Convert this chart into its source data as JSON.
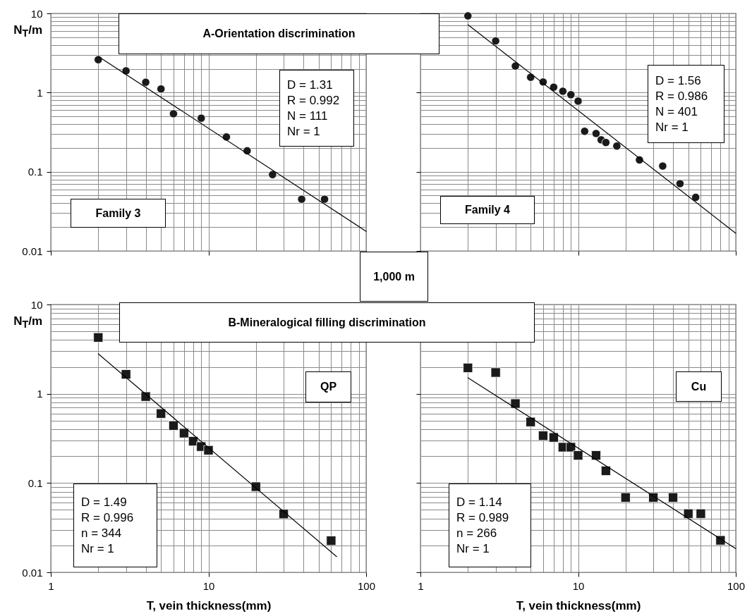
{
  "chart_data": [
    {
      "type": "scatter",
      "title": "A-Orientation discrimination",
      "ylabel": "N$_{T}$/m",
      "annotations": [
        "Family 3",
        "D = 1.31\nR = 0.992\nN = 111\nNr = 1",
        "1,000 m"
      ],
      "log": "xy",
      "grid": true,
      "tick_labels": "y",
      "xlim": [
        1,
        100
      ],
      "ylim": [
        0.01,
        10
      ],
      "xticks": [
        1,
        {
          "value": 2,
          "label": null
        },
        {
          "value": 3,
          "label": null
        },
        {
          "value": 4,
          "label": null
        },
        {
          "value": 5,
          "label": null
        },
        {
          "value": 6,
          "label": null
        },
        {
          "value": 7,
          "label": null
        },
        {
          "value": 8,
          "label": null
        },
        {
          "value": 9,
          "label": null
        },
        10,
        {
          "value": 20,
          "label": null
        },
        {
          "value": 30,
          "label": null
        },
        {
          "value": 40,
          "label": null
        },
        {
          "value": 50,
          "label": null
        },
        {
          "value": 60,
          "label": null
        },
        {
          "value": 70,
          "label": null
        },
        {
          "value": 80,
          "label": null
        },
        {
          "value": 90,
          "label": null
        },
        100
      ],
      "yticks": [
        0.01,
        {
          "value": 0.02,
          "label": null
        },
        {
          "value": 0.03,
          "label": null
        },
        {
          "value": 0.04,
          "label": null
        },
        {
          "value": 0.05,
          "label": null
        },
        {
          "value": 0.06,
          "label": null
        },
        {
          "value": 0.07,
          "label": null
        },
        {
          "value": 0.08,
          "label": null
        },
        {
          "value": 0.09,
          "label": null
        },
        0.1,
        {
          "value": 0.2,
          "label": null
        },
        {
          "value": 0.3,
          "label": null
        },
        {
          "value": 0.4,
          "label": null
        },
        {
          "value": 0.5,
          "label": null
        },
        {
          "value": 0.6,
          "label": null
        },
        {
          "value": 0.7,
          "label": null
        },
        {
          "value": 0.8,
          "label": null
        },
        {
          "value": 0.9,
          "label": null
        },
        1,
        {
          "value": 2,
          "label": null
        },
        {
          "value": 3,
          "label": null
        },
        {
          "value": 4,
          "label": null
        },
        {
          "value": 5,
          "label": null
        },
        {
          "value": 6,
          "label": null
        },
        {
          "value": 7,
          "label": null
        },
        {
          "value": 8,
          "label": null
        },
        {
          "value": 9,
          "label": null
        },
        10
      ],
      "series": [
        {
          "type": "scatter",
          "marker": "circle",
          "color": "#1a1a1a",
          "x": [
            2,
            3,
            4,
            5,
            6,
            9,
            13,
            17.6,
            25.5,
            39,
            54.5
          ],
          "values": [
            2.6,
            1.88,
            1.35,
            1.11,
            0.54,
            0.475,
            0.275,
            0.184,
            0.092,
            0.045,
            0.045
          ]
        },
        {
          "type": "line",
          "marker": "none",
          "color": "#000000",
          "x": [
            2,
            100
          ],
          "values": [
            2.87,
            0.0177
          ]
        }
      ]
    },
    {
      "type": "scatter",
      "annotations": [
        "Family 4",
        "D = 1.56\nR = 0.986\nN = 401\nNr = 1"
      ],
      "log": "xy",
      "grid": true,
      "tick_labels": false,
      "xlim": [
        1,
        100
      ],
      "ylim": [
        0.01,
        10
      ],
      "xticks": [
        1,
        {
          "value": 2,
          "label": null
        },
        {
          "value": 3,
          "label": null
        },
        {
          "value": 4,
          "label": null
        },
        {
          "value": 5,
          "label": null
        },
        {
          "value": 6,
          "label": null
        },
        {
          "value": 7,
          "label": null
        },
        {
          "value": 8,
          "label": null
        },
        {
          "value": 9,
          "label": null
        },
        10,
        {
          "value": 20,
          "label": null
        },
        {
          "value": 30,
          "label": null
        },
        {
          "value": 40,
          "label": null
        },
        {
          "value": 50,
          "label": null
        },
        {
          "value": 60,
          "label": null
        },
        {
          "value": 70,
          "label": null
        },
        {
          "value": 80,
          "label": null
        },
        {
          "value": 90,
          "label": null
        },
        100
      ],
      "yticks": [
        0.01,
        {
          "value": 0.02,
          "label": null
        },
        {
          "value": 0.03,
          "label": null
        },
        {
          "value": 0.04,
          "label": null
        },
        {
          "value": 0.05,
          "label": null
        },
        {
          "value": 0.06,
          "label": null
        },
        {
          "value": 0.07,
          "label": null
        },
        {
          "value": 0.08,
          "label": null
        },
        {
          "value": 0.09,
          "label": null
        },
        0.1,
        {
          "value": 0.2,
          "label": null
        },
        {
          "value": 0.3,
          "label": null
        },
        {
          "value": 0.4,
          "label": null
        },
        {
          "value": 0.5,
          "label": null
        },
        {
          "value": 0.6,
          "label": null
        },
        {
          "value": 0.7,
          "label": null
        },
        {
          "value": 0.8,
          "label": null
        },
        {
          "value": 0.9,
          "label": null
        },
        1,
        {
          "value": 2,
          "label": null
        },
        {
          "value": 3,
          "label": null
        },
        {
          "value": 4,
          "label": null
        },
        {
          "value": 5,
          "label": null
        },
        {
          "value": 6,
          "label": null
        },
        {
          "value": 7,
          "label": null
        },
        {
          "value": 8,
          "label": null
        },
        {
          "value": 9,
          "label": null
        },
        10
      ],
      "series": [
        {
          "type": "scatter",
          "marker": "circle",
          "color": "#1a1a1a",
          "x": [
            2,
            3,
            4,
            5,
            6,
            7,
            8,
            9,
            10,
            11,
            13,
            14,
            15,
            17.6,
            24.5,
            34.4,
            44.3,
            55.7
          ],
          "values": [
            9.3,
            4.49,
            2.16,
            1.56,
            1.36,
            1.17,
            1.04,
            0.94,
            0.78,
            0.324,
            0.304,
            0.253,
            0.234,
            0.211,
            0.141,
            0.118,
            0.0707,
            0.0475
          ]
        },
        {
          "type": "line",
          "marker": "none",
          "color": "#000000",
          "x": [
            2,
            100
          ],
          "values": [
            7.2,
            0.0167
          ]
        }
      ]
    },
    {
      "type": "scatter",
      "title": "B-Mineralogical filling discrimination",
      "xlabel": "T, vein thickness(mm)",
      "ylabel": "N$_{T}$/m",
      "annotations": [
        "D = 1.49\nR = 0.996\nn = 344\nNr = 1",
        "QP"
      ],
      "log": "xy",
      "grid": true,
      "xlim": [
        1,
        100
      ],
      "ylim": [
        0.01,
        10
      ],
      "xticks": [
        1,
        {
          "value": 2,
          "label": null
        },
        {
          "value": 3,
          "label": null
        },
        {
          "value": 4,
          "label": null
        },
        {
          "value": 5,
          "label": null
        },
        {
          "value": 6,
          "label": null
        },
        {
          "value": 7,
          "label": null
        },
        {
          "value": 8,
          "label": null
        },
        {
          "value": 9,
          "label": null
        },
        10,
        {
          "value": 20,
          "label": null
        },
        {
          "value": 30,
          "label": null
        },
        {
          "value": 40,
          "label": null
        },
        {
          "value": 50,
          "label": null
        },
        {
          "value": 60,
          "label": null
        },
        {
          "value": 70,
          "label": null
        },
        {
          "value": 80,
          "label": null
        },
        {
          "value": 90,
          "label": null
        },
        100
      ],
      "yticks": [
        0.01,
        {
          "value": 0.02,
          "label": null
        },
        {
          "value": 0.03,
          "label": null
        },
        {
          "value": 0.04,
          "label": null
        },
        {
          "value": 0.05,
          "label": null
        },
        {
          "value": 0.06,
          "label": null
        },
        {
          "value": 0.07,
          "label": null
        },
        {
          "value": 0.08,
          "label": null
        },
        {
          "value": 0.09,
          "label": null
        },
        0.1,
        {
          "value": 0.2,
          "label": null
        },
        {
          "value": 0.3,
          "label": null
        },
        {
          "value": 0.4,
          "label": null
        },
        {
          "value": 0.5,
          "label": null
        },
        {
          "value": 0.6,
          "label": null
        },
        {
          "value": 0.7,
          "label": null
        },
        {
          "value": 0.8,
          "label": null
        },
        {
          "value": 0.9,
          "label": null
        },
        1,
        {
          "value": 2,
          "label": null
        },
        {
          "value": 3,
          "label": null
        },
        {
          "value": 4,
          "label": null
        },
        {
          "value": 5,
          "label": null
        },
        {
          "value": 6,
          "label": null
        },
        {
          "value": 7,
          "label": null
        },
        {
          "value": 8,
          "label": null
        },
        {
          "value": 9,
          "label": null
        },
        10
      ],
      "series": [
        {
          "type": "scatter",
          "marker": "square",
          "color": "#1a1a1a",
          "x": [
            2,
            3,
            4,
            5,
            6,
            7,
            8,
            9,
            10,
            20,
            30,
            60
          ],
          "values": [
            4.27,
            1.65,
            0.93,
            0.6,
            0.44,
            0.362,
            0.294,
            0.256,
            0.233,
            0.091,
            0.045,
            0.0226
          ]
        },
        {
          "type": "line",
          "marker": "none",
          "color": "#000000",
          "x": [
            2,
            65
          ],
          "values": [
            2.8,
            0.015
          ]
        }
      ]
    },
    {
      "type": "scatter",
      "xlabel": "T, vein thickness(mm)",
      "annotations": [
        "D = 1.14\nR = 0.989\nn = 266\nNr = 1",
        "Cu"
      ],
      "log": "xy",
      "grid": true,
      "tick_labels": "x",
      "xlim": [
        1,
        100
      ],
      "ylim": [
        0.01,
        10
      ],
      "xticks": [
        1,
        {
          "value": 2,
          "label": null
        },
        {
          "value": 3,
          "label": null
        },
        {
          "value": 4,
          "label": null
        },
        {
          "value": 5,
          "label": null
        },
        {
          "value": 6,
          "label": null
        },
        {
          "value": 7,
          "label": null
        },
        {
          "value": 8,
          "label": null
        },
        {
          "value": 9,
          "label": null
        },
        10,
        {
          "value": 20,
          "label": null
        },
        {
          "value": 30,
          "label": null
        },
        {
          "value": 40,
          "label": null
        },
        {
          "value": 50,
          "label": null
        },
        {
          "value": 60,
          "label": null
        },
        {
          "value": 70,
          "label": null
        },
        {
          "value": 80,
          "label": null
        },
        {
          "value": 90,
          "label": null
        },
        100
      ],
      "yticks": [
        0.01,
        {
          "value": 0.02,
          "label": null
        },
        {
          "value": 0.03,
          "label": null
        },
        {
          "value": 0.04,
          "label": null
        },
        {
          "value": 0.05,
          "label": null
        },
        {
          "value": 0.06,
          "label": null
        },
        {
          "value": 0.07,
          "label": null
        },
        {
          "value": 0.08,
          "label": null
        },
        {
          "value": 0.09,
          "label": null
        },
        0.1,
        {
          "value": 0.2,
          "label": null
        },
        {
          "value": 0.3,
          "label": null
        },
        {
          "value": 0.4,
          "label": null
        },
        {
          "value": 0.5,
          "label": null
        },
        {
          "value": 0.6,
          "label": null
        },
        {
          "value": 0.7,
          "label": null
        },
        {
          "value": 0.8,
          "label": null
        },
        {
          "value": 0.9,
          "label": null
        },
        1,
        {
          "value": 2,
          "label": null
        },
        {
          "value": 3,
          "label": null
        },
        {
          "value": 4,
          "label": null
        },
        {
          "value": 5,
          "label": null
        },
        {
          "value": 6,
          "label": null
        },
        {
          "value": 7,
          "label": null
        },
        {
          "value": 8,
          "label": null
        },
        {
          "value": 9,
          "label": null
        },
        10
      ],
      "series": [
        {
          "type": "scatter",
          "marker": "square",
          "color": "#1a1a1a",
          "x": [
            2,
            3,
            4,
            5,
            6,
            7,
            8,
            9,
            10,
            13,
            15,
            20,
            30,
            40,
            50,
            60,
            80
          ],
          "values": [
            1.95,
            1.73,
            0.776,
            0.483,
            0.339,
            0.324,
            0.252,
            0.252,
            0.204,
            0.204,
            0.137,
            0.0689,
            0.0689,
            0.0689,
            0.0454,
            0.0454,
            0.0228
          ]
        },
        {
          "type": "line",
          "marker": "none",
          "color": "#000000",
          "x": [
            2,
            100
          ],
          "values": [
            1.51,
            0.0184
          ]
        }
      ]
    }
  ]
}
